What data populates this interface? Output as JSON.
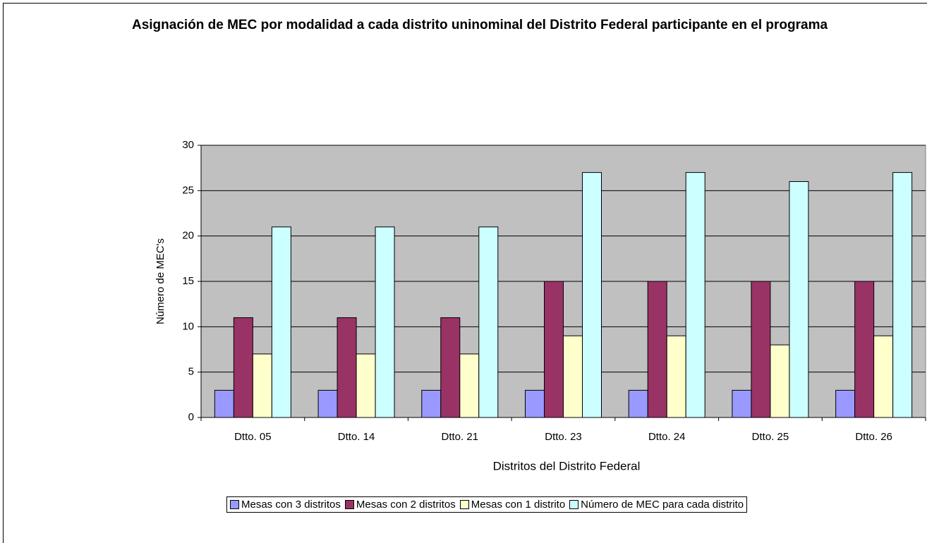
{
  "chart_data": {
    "type": "bar",
    "title": "Asignación de MEC por modalidad a cada distrito uninominal del Distrito Federal participante en el programa",
    "x_label": "Distritos del Distrito Federal",
    "y_label": "Número de MEC's",
    "categories": [
      "Dtto. 05",
      "Dtto. 14",
      "Dtto. 21",
      "Dtto. 23",
      "Dtto. 24",
      "Dtto. 25",
      "Dtto. 26"
    ],
    "series": [
      {
        "name": "Mesas con 3 distritos",
        "color": "#9999ff",
        "values": [
          3,
          3,
          3,
          3,
          3,
          3,
          3
        ]
      },
      {
        "name": "Mesas con 2 distritos",
        "color": "#993366",
        "values": [
          11,
          11,
          11,
          15,
          15,
          15,
          15
        ]
      },
      {
        "name": "Mesas con 1 distrito",
        "color": "#ffffcc",
        "values": [
          7,
          7,
          7,
          9,
          9,
          8,
          9
        ]
      },
      {
        "name": "Número de MEC para cada distrito",
        "color": "#ccffff",
        "values": [
          21,
          21,
          21,
          27,
          27,
          26,
          27
        ]
      }
    ],
    "ylim": [
      0,
      30
    ],
    "yticks": [
      0,
      5,
      10,
      15,
      20,
      25,
      30
    ],
    "grid": true,
    "plot_background": "#c0c0c0",
    "legend": "bottom"
  }
}
